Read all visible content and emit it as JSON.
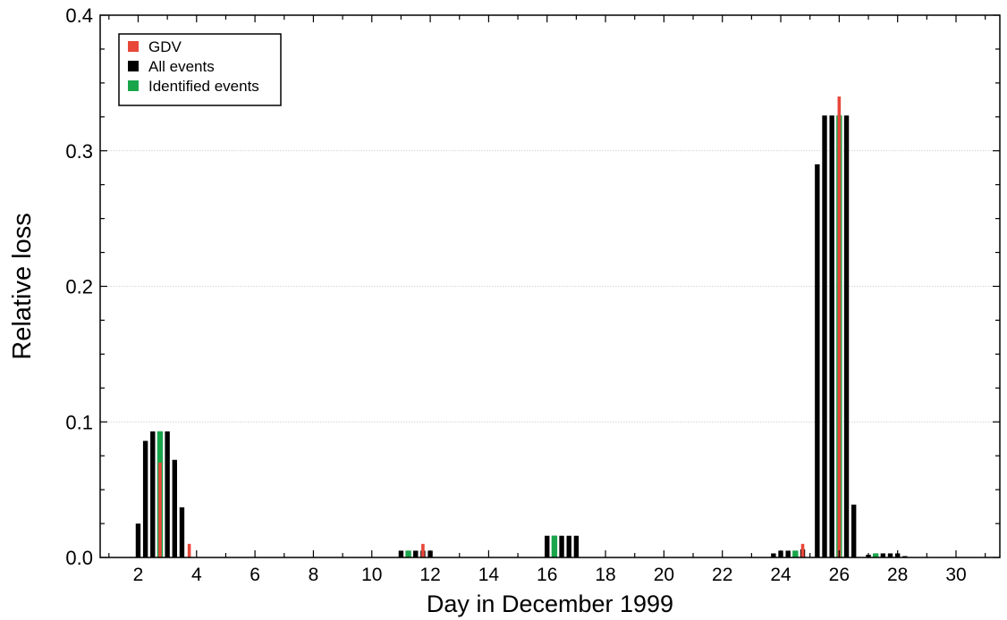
{
  "chart_data": {
    "type": "bar",
    "xlabel": "Day in December 1999",
    "ylabel": "Relative loss",
    "xlim": [
      0.7,
      31.5
    ],
    "ylim": [
      0,
      0.4
    ],
    "x_ticks": [
      2,
      4,
      6,
      8,
      10,
      12,
      14,
      16,
      18,
      20,
      22,
      24,
      26,
      28,
      30
    ],
    "x_tick_labels": [
      "2",
      "4",
      "6",
      "8",
      "10",
      "12",
      "14",
      "16",
      "18",
      "20",
      "22",
      "24",
      "26",
      "28",
      "30"
    ],
    "y_ticks": [
      0,
      0.1,
      0.2,
      0.3,
      0.4
    ],
    "y_tick_labels": [
      "0.0",
      "0.1",
      "0.2",
      "0.3",
      "0.4"
    ],
    "grid": "horizontal",
    "legend": {
      "position": "top-left",
      "entries": [
        {
          "label": "GDV",
          "color": "#e8473a"
        },
        {
          "label": "All events",
          "color": "#000000"
        },
        {
          "label": "Identified events",
          "color": "#19a64b"
        }
      ]
    },
    "series": [
      {
        "name": "All events",
        "color": "#000000",
        "points": [
          {
            "x": 2.0,
            "y": 0.025
          },
          {
            "x": 2.25,
            "y": 0.086
          },
          {
            "x": 2.5,
            "y": 0.093
          },
          {
            "x": 2.75,
            "y": 0.093
          },
          {
            "x": 3.0,
            "y": 0.093
          },
          {
            "x": 3.25,
            "y": 0.072
          },
          {
            "x": 3.5,
            "y": 0.037
          },
          {
            "x": 11.0,
            "y": 0.005
          },
          {
            "x": 11.25,
            "y": 0.005
          },
          {
            "x": 11.5,
            "y": 0.005
          },
          {
            "x": 11.75,
            "y": 0.005
          },
          {
            "x": 12.0,
            "y": 0.005
          },
          {
            "x": 16.0,
            "y": 0.016
          },
          {
            "x": 16.25,
            "y": 0.016
          },
          {
            "x": 16.5,
            "y": 0.016
          },
          {
            "x": 16.75,
            "y": 0.016
          },
          {
            "x": 17.0,
            "y": 0.016
          },
          {
            "x": 23.75,
            "y": 0.003
          },
          {
            "x": 24.0,
            "y": 0.005
          },
          {
            "x": 24.25,
            "y": 0.005
          },
          {
            "x": 24.5,
            "y": 0.005
          },
          {
            "x": 24.75,
            "y": 0.006
          },
          {
            "x": 25.25,
            "y": 0.29
          },
          {
            "x": 25.5,
            "y": 0.326
          },
          {
            "x": 25.75,
            "y": 0.326
          },
          {
            "x": 26.0,
            "y": 0.326
          },
          {
            "x": 26.25,
            "y": 0.326
          },
          {
            "x": 26.5,
            "y": 0.039
          },
          {
            "x": 27.0,
            "y": 0.002
          },
          {
            "x": 27.25,
            "y": 0.003
          },
          {
            "x": 27.5,
            "y": 0.003
          },
          {
            "x": 27.75,
            "y": 0.003
          },
          {
            "x": 28.0,
            "y": 0.003
          },
          {
            "x": 28.25,
            "y": 0.001
          }
        ]
      },
      {
        "name": "Identified events",
        "color": "#19a64b",
        "points": [
          {
            "x": 2.75,
            "y": 0.093
          },
          {
            "x": 11.25,
            "y": 0.005
          },
          {
            "x": 16.25,
            "y": 0.016
          },
          {
            "x": 24.5,
            "y": 0.005
          },
          {
            "x": 26.0,
            "y": 0.326
          },
          {
            "x": 27.25,
            "y": 0.003
          }
        ]
      },
      {
        "name": "GDV",
        "color": "#e8473a",
        "points": [
          {
            "x": 2.75,
            "y": 0.07
          },
          {
            "x": 3.75,
            "y": 0.01
          },
          {
            "x": 11.75,
            "y": 0.01
          },
          {
            "x": 24.75,
            "y": 0.01
          },
          {
            "x": 26.0,
            "y": 0.34
          }
        ]
      }
    ]
  }
}
